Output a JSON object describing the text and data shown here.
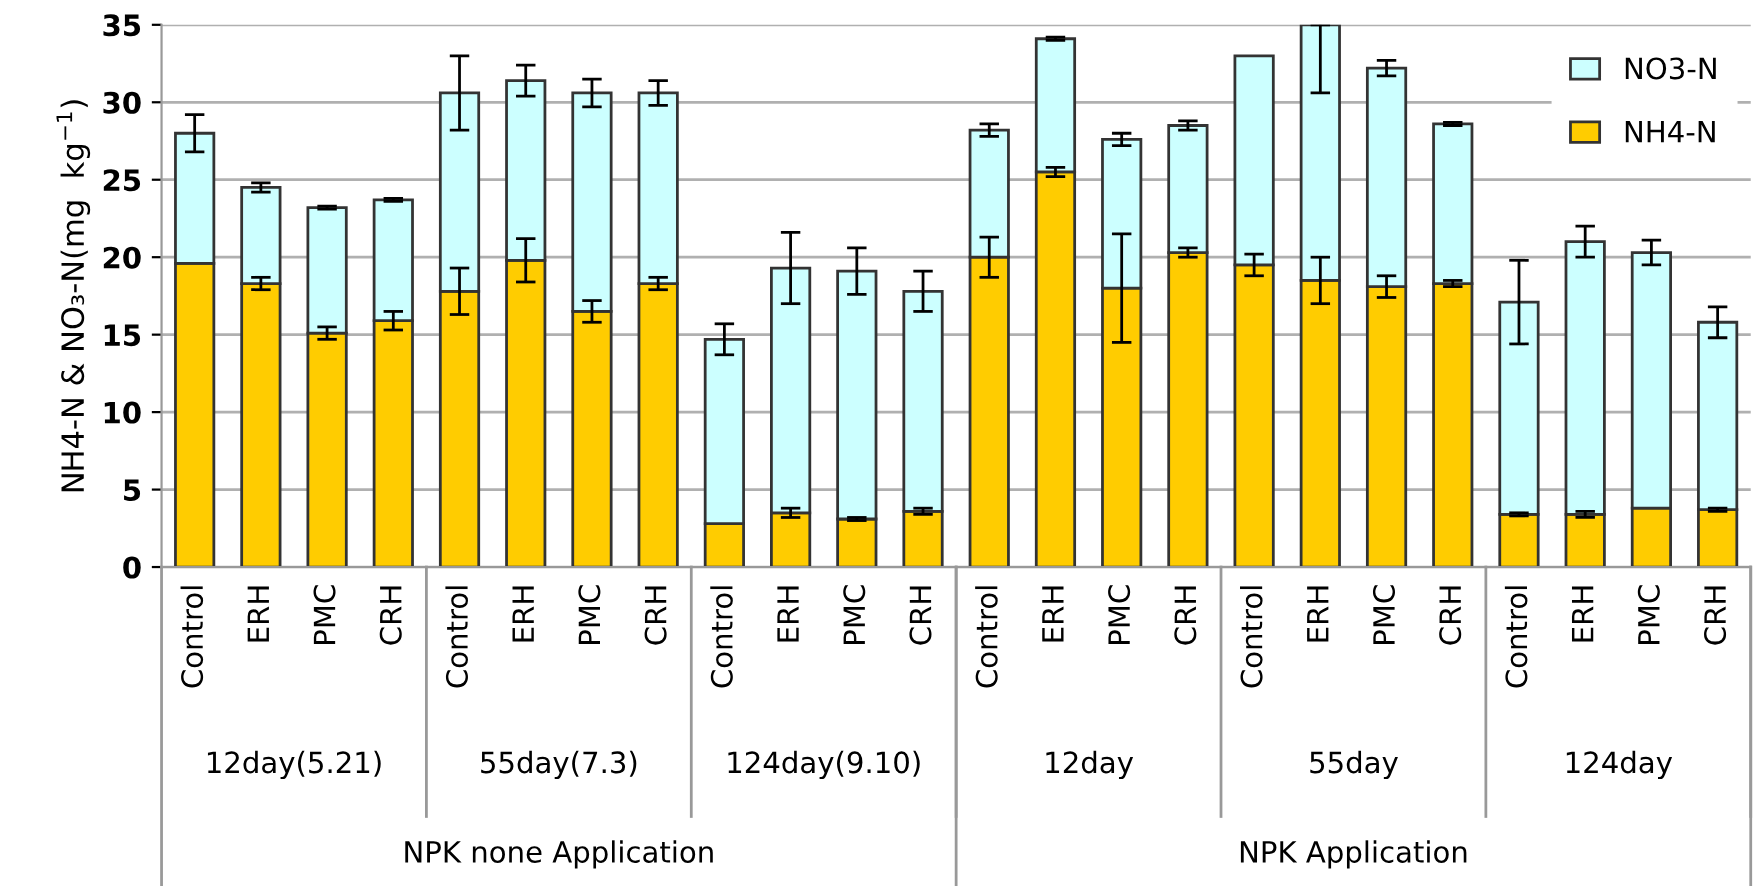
{
  "chart_data": {
    "type": "bar",
    "stacked": true,
    "ylabel": "NH4-N & NO₃-N(mg  kg$^{−1}$)",
    "categories": [
      "Control",
      "ERH",
      "PMC",
      "CRH",
      "Control",
      "ERH",
      "PMC",
      "CRH",
      "Control",
      "ERH",
      "PMC",
      "CRH",
      "Control",
      "ERH",
      "PMC",
      "CRH",
      "Control",
      "ERH",
      "PMC",
      "CRH",
      "Control",
      "ERH",
      "PMC",
      "CRH"
    ],
    "series": [
      {
        "name": "NH4-N",
        "color": "#ffcc00",
        "values": [
          19.6,
          18.3,
          15.1,
          15.9,
          17.8,
          19.8,
          16.5,
          18.3,
          2.8,
          3.5,
          3.1,
          3.6,
          20.0,
          25.5,
          18.0,
          20.3,
          19.5,
          18.5,
          18.1,
          18.3,
          3.4,
          3.4,
          3.8,
          3.7
        ],
        "errors": [
          null,
          0.4,
          0.4,
          0.6,
          1.5,
          1.4,
          0.7,
          0.4,
          null,
          0.3,
          0.1,
          0.2,
          1.3,
          0.3,
          3.5,
          0.3,
          0.7,
          1.5,
          0.7,
          0.2,
          0.1,
          0.2,
          null,
          0.1
        ]
      },
      {
        "name": "NO3-N",
        "color": "#ccffff",
        "values": [
          8.4,
          6.2,
          8.1,
          7.8,
          12.8,
          11.6,
          14.1,
          12.3,
          11.9,
          15.8,
          16.0,
          14.2,
          8.2,
          8.6,
          9.6,
          8.2,
          13.5,
          16.5,
          14.1,
          10.3,
          13.7,
          17.6,
          16.5,
          12.1
        ],
        "errors": [
          1.2,
          0.3,
          0.1,
          0.1,
          2.4,
          1.0,
          0.9,
          0.8,
          1.0,
          2.3,
          1.5,
          1.3,
          0.4,
          0.1,
          0.4,
          0.3,
          null,
          [
            30.6,
            35
          ],
          0.5,
          0.1,
          2.7,
          1.0,
          0.8,
          1.0
        ]
      }
    ],
    "ylim": [
      0,
      35
    ],
    "yticks": [
      0,
      5,
      10,
      15,
      20,
      25,
      30,
      35
    ],
    "grid": "y",
    "legend": "top right",
    "annotations": [
      "12day(5.21)",
      "55day(7.3)",
      "124day(9.10)",
      "12day",
      "55day",
      "124day",
      "NPK none Application",
      "NPK Application"
    ]
  }
}
